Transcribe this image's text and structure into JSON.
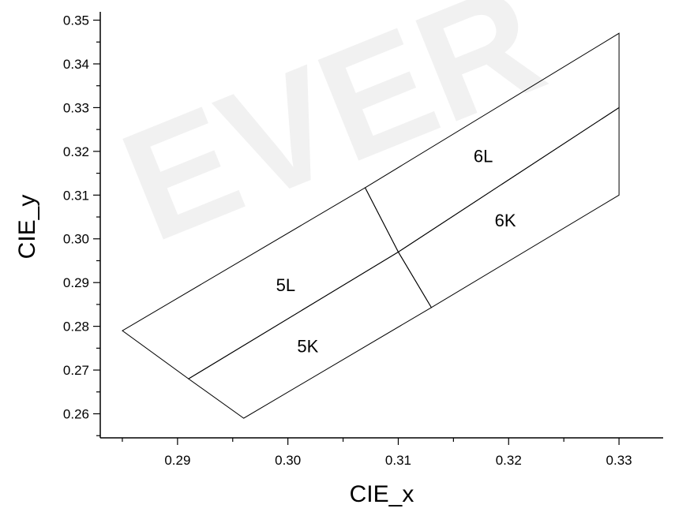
{
  "chart_data": {
    "type": "line",
    "title": "",
    "xlabel": "CIE_x",
    "ylabel": "CIE_y",
    "xlim": [
      0.283,
      0.334
    ],
    "ylim": [
      0.2545,
      0.351
    ],
    "xticks": [
      0.29,
      0.3,
      0.31,
      0.32,
      0.33
    ],
    "xtick_labels": [
      "0.29",
      "0.30",
      "0.31",
      "0.32",
      "0.33"
    ],
    "yticks": [
      0.26,
      0.27,
      0.28,
      0.29,
      0.3,
      0.31,
      0.32,
      0.33,
      0.34,
      0.35
    ],
    "ytick_labels": [
      "0.26",
      "0.27",
      "0.28",
      "0.29",
      "0.30",
      "0.31",
      "0.32",
      "0.33",
      "0.34",
      "0.35"
    ],
    "grid": false,
    "watermark": "EVER",
    "regions": [
      {
        "name": "5L",
        "points": [
          [
            0.285,
            0.279
          ],
          [
            0.307,
            0.3117
          ],
          [
            0.31,
            0.297
          ],
          [
            0.291,
            0.268
          ]
        ],
        "label_at": [
          0.2998,
          0.2895
        ]
      },
      {
        "name": "6L",
        "points": [
          [
            0.307,
            0.3117
          ],
          [
            0.33,
            0.347
          ],
          [
            0.33,
            0.33
          ],
          [
            0.31,
            0.297
          ]
        ],
        "label_at": [
          0.3177,
          0.319
        ]
      },
      {
        "name": "5K",
        "points": [
          [
            0.291,
            0.268
          ],
          [
            0.31,
            0.297
          ],
          [
            0.313,
            0.2843
          ],
          [
            0.296,
            0.259
          ]
        ],
        "label_at": [
          0.3018,
          0.2755
        ]
      },
      {
        "name": "6K",
        "points": [
          [
            0.31,
            0.297
          ],
          [
            0.33,
            0.33
          ],
          [
            0.33,
            0.31
          ],
          [
            0.313,
            0.2843
          ]
        ],
        "label_at": [
          0.3197,
          0.3043
        ]
      }
    ]
  }
}
